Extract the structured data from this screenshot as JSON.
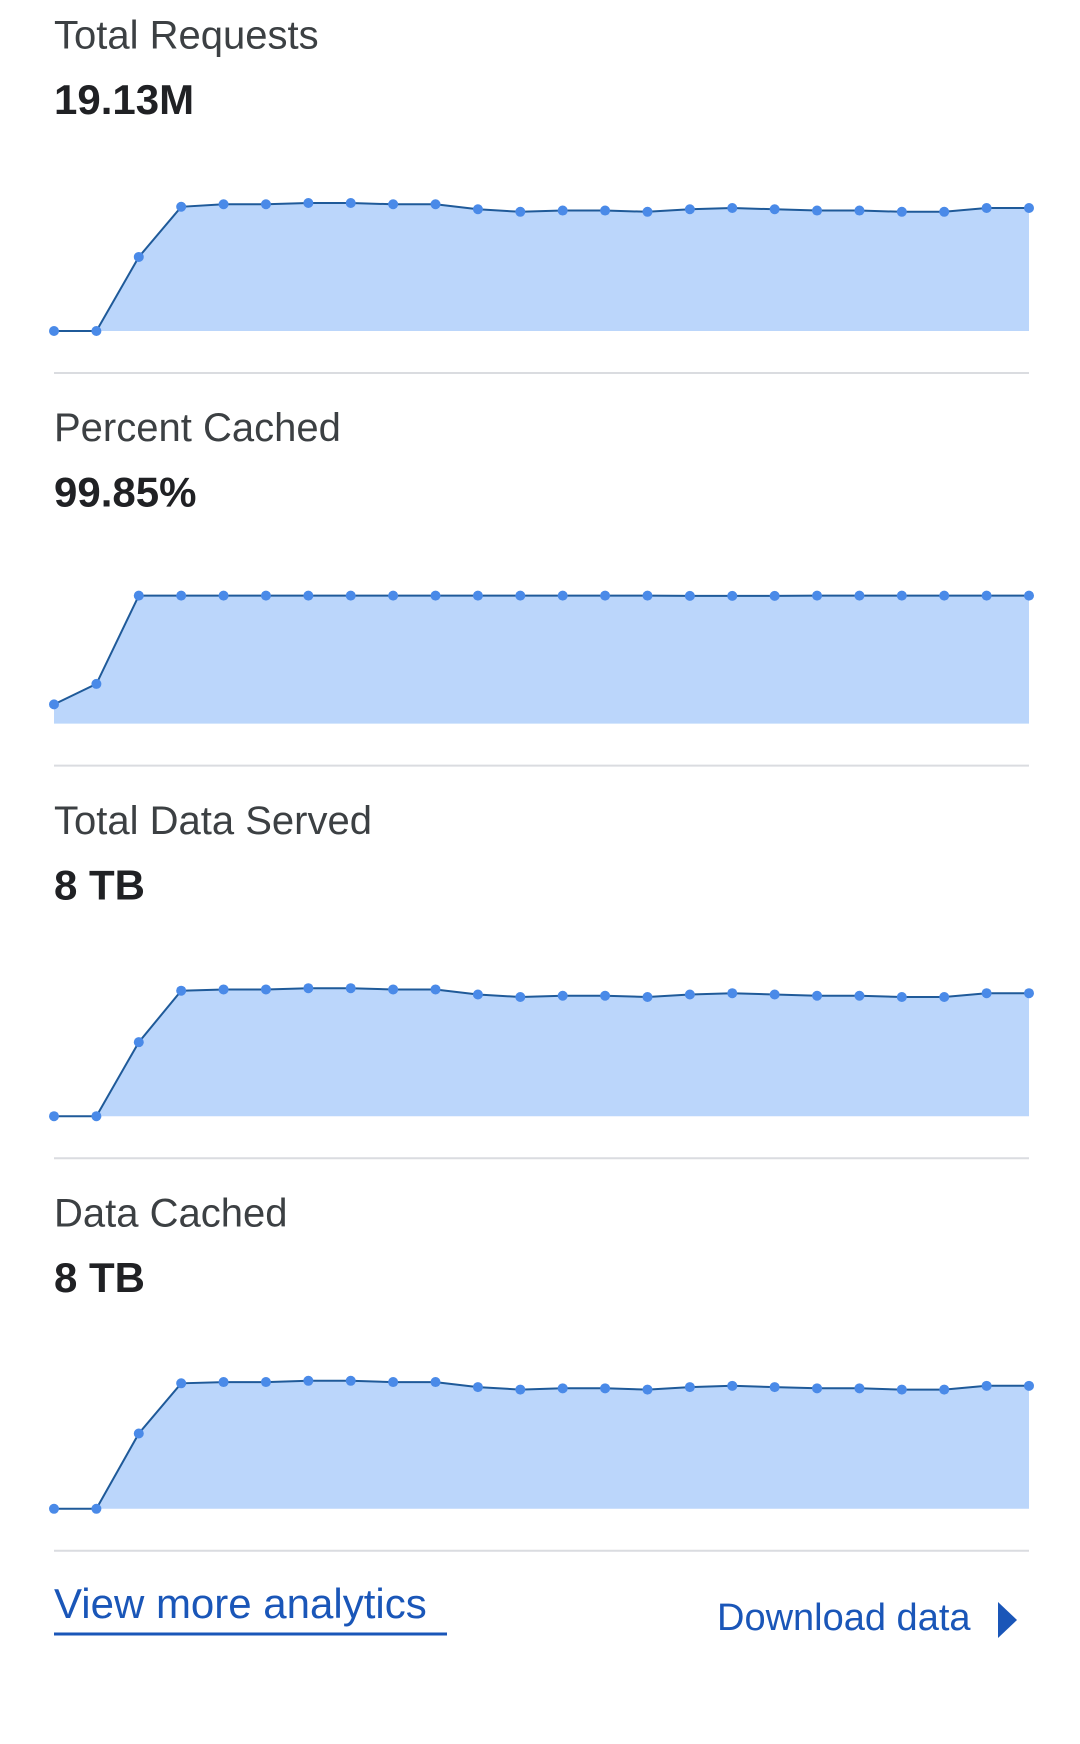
{
  "chart_data": [
    {
      "type": "area",
      "title": "Total Requests",
      "subtitle": "19.13M",
      "color": "#bbd6fb",
      "line_color": "#1f5a99",
      "marker_color": "#4a8ae8",
      "values": [
        0,
        0,
        59,
        99,
        101,
        101,
        102,
        102,
        101,
        101,
        97,
        95,
        96,
        96,
        95,
        97,
        98,
        97,
        96,
        96,
        95,
        95,
        98,
        98
      ]
    },
    {
      "type": "area",
      "title": "Percent Cached",
      "subtitle": "99.85%",
      "color": "#bbd6fb",
      "line_color": "#1f5a99",
      "marker_color": "#4a8ae8",
      "values": [
        15,
        31,
        100,
        100,
        100,
        100,
        100,
        100,
        100,
        100,
        100,
        100,
        100,
        100,
        100,
        99.8,
        99.8,
        99.8,
        100,
        100,
        100,
        100,
        100,
        100
      ]
    },
    {
      "type": "area",
      "title": "Total Data Served",
      "subtitle": "8 TB",
      "color": "#bbd6fb",
      "line_color": "#1f5a99",
      "marker_color": "#4a8ae8",
      "values": [
        0,
        0,
        59,
        100,
        101,
        101,
        102,
        102,
        101,
        101,
        97,
        95,
        96,
        96,
        95,
        97,
        98,
        97,
        96,
        96,
        95,
        95,
        98,
        98
      ]
    },
    {
      "type": "area",
      "title": "Data Cached",
      "subtitle": "8 TB",
      "color": "#bbd6fb",
      "line_color": "#1f5a99",
      "marker_color": "#4a8ae8",
      "values": [
        0,
        0,
        60,
        100,
        101,
        101,
        102,
        102,
        101,
        101,
        97,
        95,
        96,
        96,
        95,
        97,
        98,
        97,
        96,
        96,
        95,
        95,
        98,
        98
      ]
    }
  ],
  "links": {
    "view_more": "View more analytics",
    "download": "Download data"
  }
}
